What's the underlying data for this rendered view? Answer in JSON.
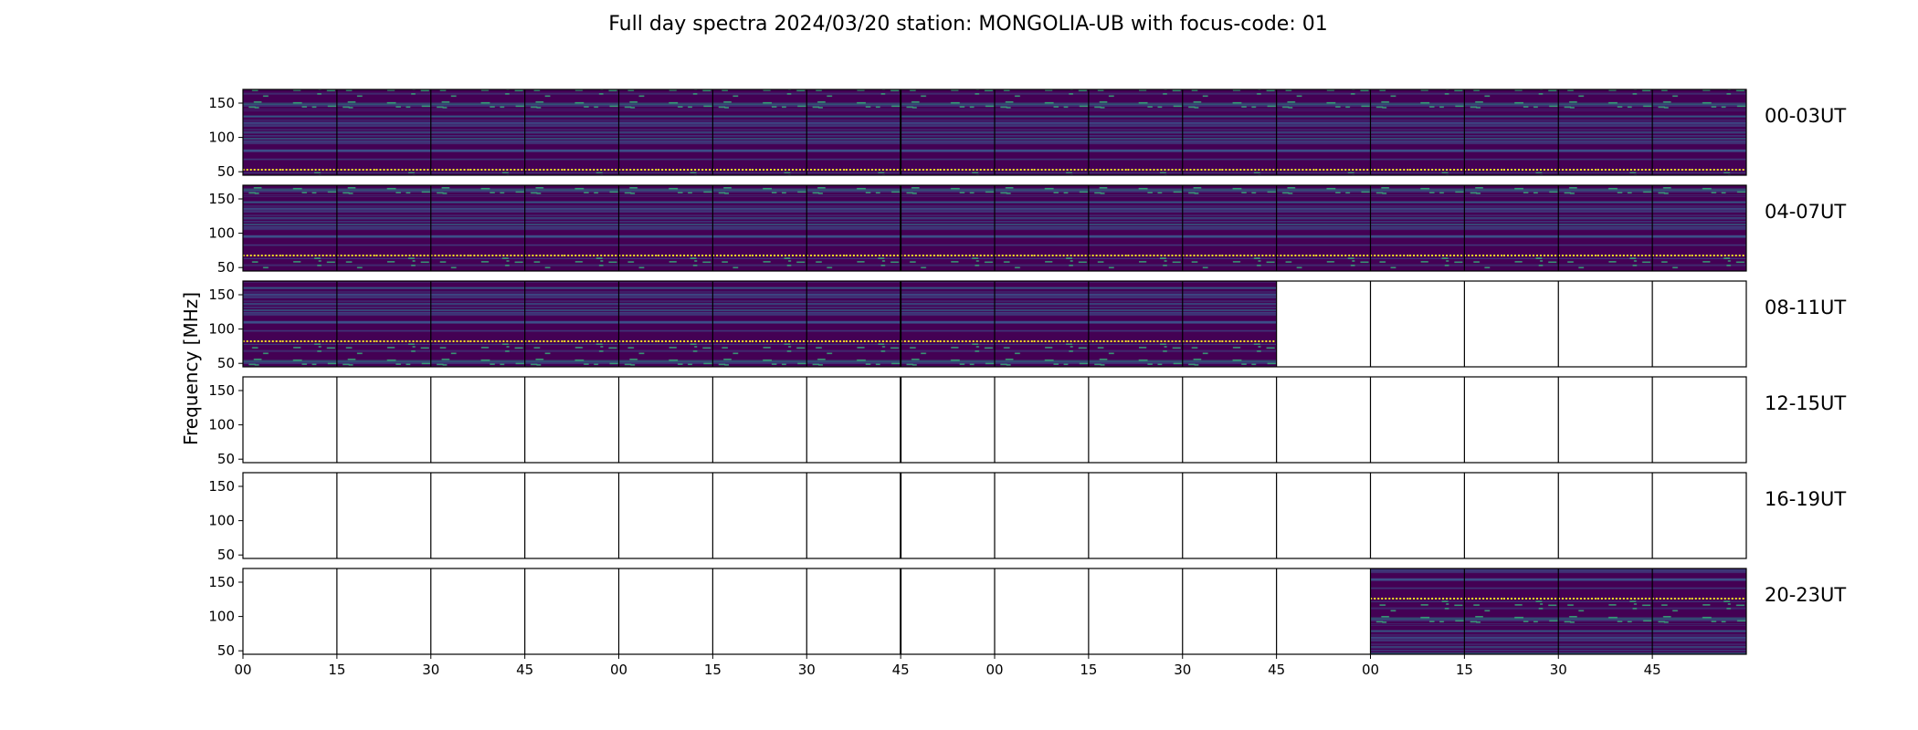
{
  "chart_data": {
    "type": "heatmap",
    "title": "Full day spectra 2024/03/20 station: MONGOLIA-UB with focus-code: 01",
    "ylabel": "Frequency [MHz]",
    "xlabel": "",
    "y_ticks": [
      50,
      100,
      150
    ],
    "y_tick_labels": [
      "50",
      "100",
      "150"
    ],
    "ylim": [
      45,
      170
    ],
    "x_ticks": [
      "00",
      "15",
      "30",
      "45",
      "00",
      "15",
      "30",
      "45",
      "00",
      "15",
      "30",
      "45",
      "00",
      "15",
      "30",
      "45"
    ],
    "colormap": "viridis",
    "colors": {
      "low": "#440154",
      "mid": "#31688e",
      "high": "#35b779",
      "peak": "#fde725"
    },
    "rows": [
      {
        "label": "00-03UT",
        "filled_panels": [
          0,
          1,
          2,
          3,
          4,
          5,
          6,
          7,
          8,
          9,
          10,
          11,
          12,
          13,
          14,
          15
        ]
      },
      {
        "label": "04-07UT",
        "filled_panels": [
          0,
          1,
          2,
          3,
          4,
          5,
          6,
          7,
          8,
          9,
          10,
          11,
          12,
          13,
          14,
          15
        ]
      },
      {
        "label": "08-11UT",
        "filled_panels": [
          0,
          1,
          2,
          3,
          4,
          5,
          6,
          7,
          8,
          9,
          10
        ]
      },
      {
        "label": "12-15UT",
        "filled_panels": []
      },
      {
        "label": "16-19UT",
        "filled_panels": []
      },
      {
        "label": "20-23UT",
        "filled_panels": [
          12,
          13,
          14,
          15
        ]
      }
    ]
  }
}
